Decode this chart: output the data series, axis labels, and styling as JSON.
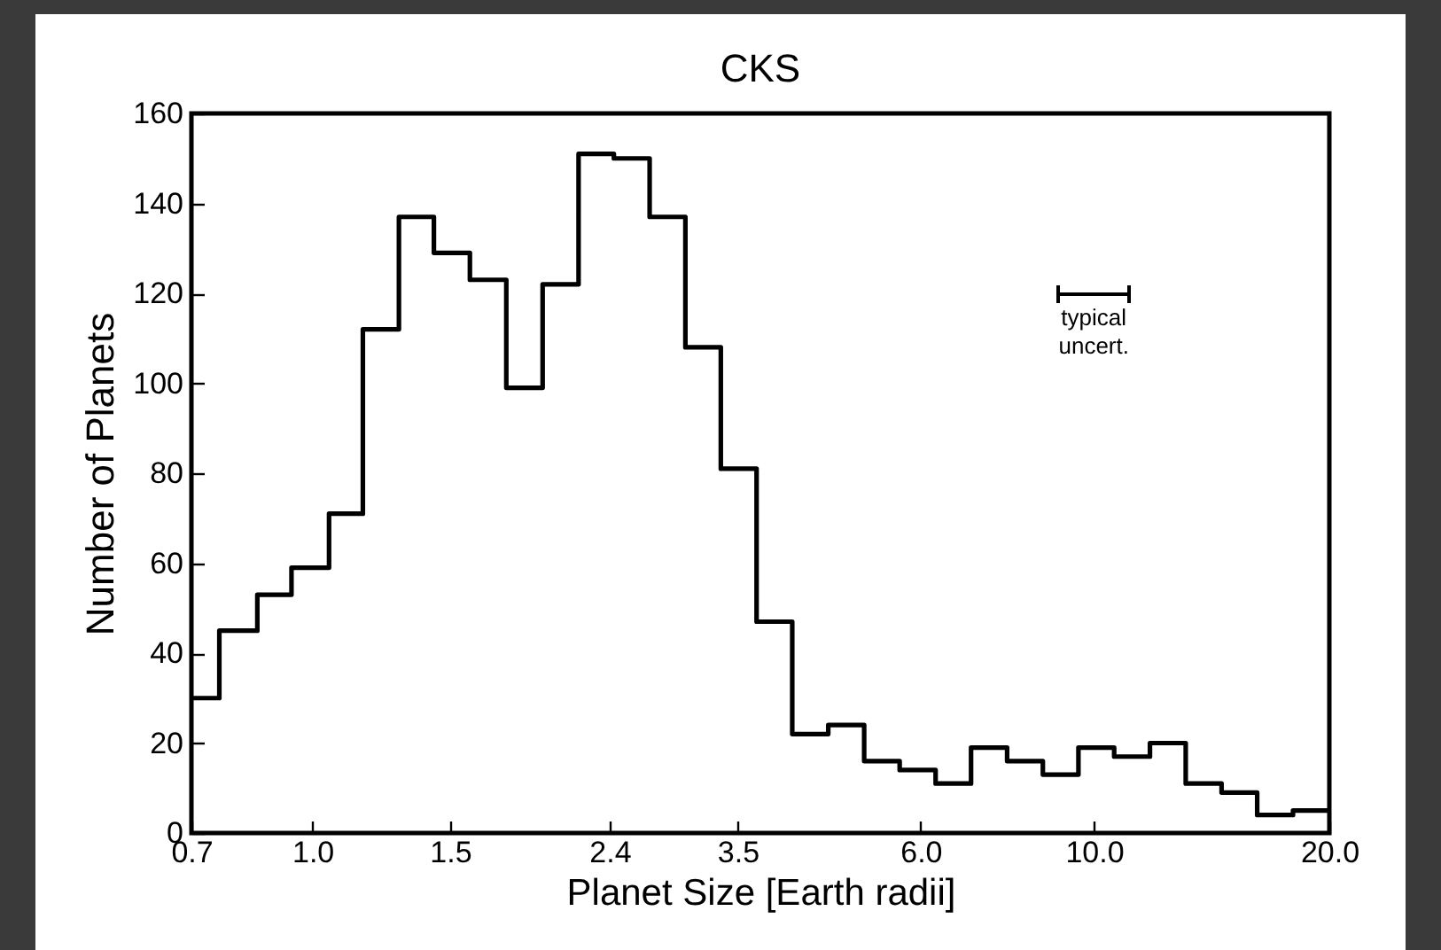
{
  "chart_data": {
    "type": "histogram",
    "title": "CKS",
    "xlabel": "Planet Size [Earth radii]",
    "ylabel": "Number of Planets",
    "bins": [
      0.7,
      0.76,
      0.85,
      0.94,
      1.05,
      1.16,
      1.29,
      1.43,
      1.59,
      1.77,
      1.97,
      2.19,
      2.43,
      2.7,
      3.0,
      3.33,
      3.7,
      4.11,
      4.57,
      5.08,
      5.64,
      6.27,
      6.96,
      7.74,
      8.6,
      9.55,
      10.61,
      11.79,
      13.1,
      14.56,
      16.17,
      17.97,
      20
    ],
    "values": [
      30,
      45,
      53,
      59,
      71,
      112,
      137,
      129,
      123,
      99,
      122,
      151,
      150,
      137,
      108,
      81,
      47,
      22,
      24,
      16,
      14,
      11,
      19,
      16,
      13,
      19,
      17,
      20,
      11,
      9,
      4,
      5
    ],
    "color": "#000000",
    "log": "x",
    "xlim": [
      0.7,
      20
    ],
    "xticks": [
      0.7,
      {
        "value": 1,
        "label": "1.0"
      },
      1.5,
      2.4,
      3.5,
      {
        "value": 6,
        "label": "6.0"
      },
      {
        "value": 10,
        "label": "10.0"
      },
      {
        "value": 20,
        "label": "20.0"
      }
    ],
    "ylim": [
      0,
      160
    ],
    "yticks": [
      0,
      20,
      40,
      60,
      80,
      100,
      120,
      140,
      160
    ],
    "annotations": [
      "typical uncert."
    ]
  }
}
